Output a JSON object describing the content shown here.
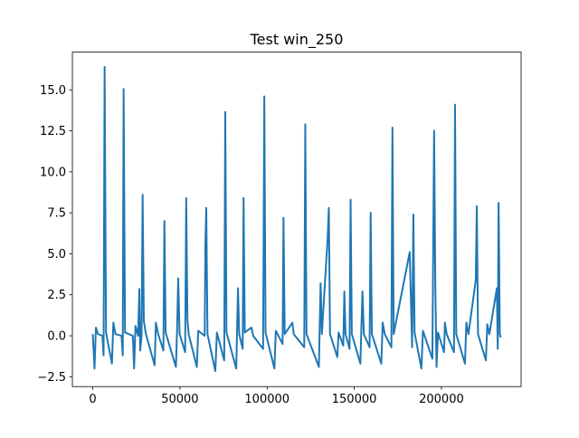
{
  "chart_data": {
    "type": "line",
    "title": "Test win_250",
    "x": [
      0,
      1000,
      1800,
      3000,
      5500,
      6200,
      6800,
      7600,
      11000,
      11800,
      13000,
      16500,
      17200,
      17700,
      18500,
      23000,
      23700,
      24500,
      26000,
      26700,
      27200,
      28000,
      28600,
      29300,
      30500,
      35500,
      36200,
      37500,
      40500,
      41100,
      41800,
      47700,
      48400,
      49000,
      49800,
      53000,
      53600,
      54300,
      55000,
      59700,
      60500,
      64200,
      64600,
      65100,
      65800,
      70300,
      71200,
      75400,
      76000,
      76700,
      82300,
      83300,
      84000,
      86000,
      86500,
      87200,
      91000,
      92000,
      97700,
      98400,
      99100,
      104200,
      105000,
      108900,
      109400,
      110100,
      114500,
      115300,
      121300,
      121900,
      122600,
      129700,
      130700,
      131400,
      134700,
      135400,
      136100,
      140300,
      141000,
      143700,
      144300,
      145000,
      147300,
      147900,
      148600,
      153500,
      154700,
      155500,
      158800,
      159400,
      160100,
      165500,
      166300,
      167500,
      171300,
      171900,
      172600,
      181800,
      183200,
      183900,
      184600,
      188500,
      189400,
      194800,
      195800,
      196500,
      197200,
      198000,
      201500,
      202000,
      203000,
      207200,
      207800,
      208500,
      213500,
      214300,
      215500,
      219700,
      220300,
      221000,
      225500,
      226300,
      227500,
      231800,
      232300,
      232800,
      233500,
      234000
    ],
    "series": [
      {
        "color": "#1f77b4",
        "values": [
          0.1,
          -2.0,
          0.5,
          0.1,
          0.0,
          -1.2,
          16.4,
          0.2,
          -1.7,
          0.8,
          0.1,
          0.0,
          -1.2,
          15.05,
          0.2,
          0.0,
          -2.0,
          0.6,
          0.0,
          2.85,
          -0.9,
          0.0,
          8.6,
          0.9,
          0.1,
          -1.8,
          0.8,
          0.1,
          -0.9,
          7.0,
          0.2,
          -1.9,
          0.5,
          3.5,
          0.1,
          -1.0,
          8.4,
          1.0,
          0.1,
          -1.9,
          0.3,
          0.0,
          5.6,
          7.8,
          0.1,
          -2.15,
          0.2,
          -1.5,
          13.65,
          0.2,
          -2.0,
          2.9,
          0.1,
          -0.8,
          8.4,
          0.2,
          0.5,
          0.0,
          -0.8,
          14.6,
          0.2,
          -2.0,
          0.3,
          -0.5,
          7.2,
          0.1,
          0.8,
          0.1,
          -0.7,
          12.9,
          0.1,
          -1.9,
          3.2,
          0.1,
          5.9,
          7.8,
          0.1,
          -1.3,
          0.2,
          -0.6,
          2.7,
          0.1,
          -0.8,
          8.3,
          0.1,
          -1.7,
          2.7,
          0.1,
          -0.7,
          7.5,
          0.1,
          -1.7,
          0.8,
          0.1,
          -0.7,
          12.7,
          0.1,
          5.1,
          -0.7,
          7.4,
          0.2,
          -2.0,
          0.3,
          -1.4,
          12.5,
          2.9,
          -1.9,
          0.2,
          -1.0,
          0.8,
          0.1,
          -1.0,
          14.1,
          0.1,
          -1.7,
          0.8,
          0.1,
          3.4,
          7.9,
          0.1,
          -1.5,
          0.7,
          0.1,
          2.9,
          -0.8,
          8.1,
          0.1,
          -0.1
        ]
      }
    ],
    "xlim": [
      -11700,
      245700
    ],
    "ylim": [
      -3.1,
      17.3
    ],
    "xticks": [
      0,
      50000,
      100000,
      150000,
      200000
    ],
    "yticks": [
      {
        "value": -2.5,
        "label": "−2.5"
      },
      {
        "value": 0,
        "label": "0.0"
      },
      {
        "value": 2.5,
        "label": "2.5"
      },
      {
        "value": 5,
        "label": "5.0"
      },
      {
        "value": 7.5,
        "label": "7.5"
      },
      {
        "value": 10,
        "label": "10.0"
      },
      {
        "value": 12.5,
        "label": "12.5"
      },
      {
        "value": 15,
        "label": "15.0"
      }
    ]
  }
}
